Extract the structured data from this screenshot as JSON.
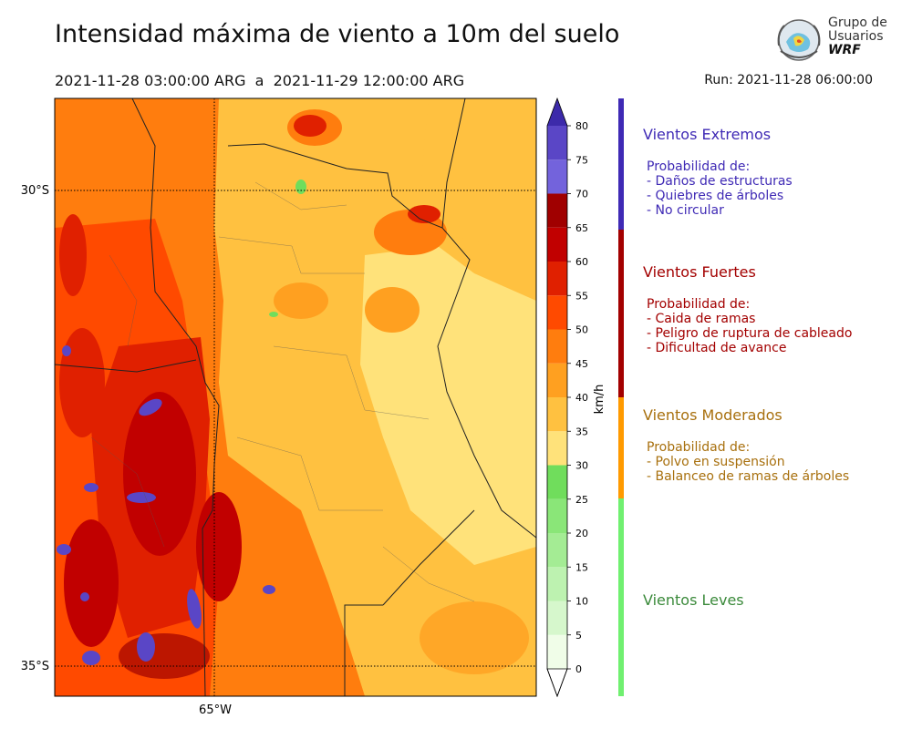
{
  "title": "Intensidad máxima de viento a 10m del suelo",
  "period": "2021-11-28 03:00:00 ARG  a  2021-11-29 12:00:00 ARG",
  "run": "Run: 2021-11-28 06:00:00",
  "logo": {
    "line1": "Grupo de",
    "line2": "Usuarios",
    "line3": "WRF"
  },
  "map": {
    "lat_labels": [
      "30°S",
      "35°S"
    ],
    "lon_labels": [
      "65°W"
    ]
  },
  "colorbar": {
    "unit_label": "km/h",
    "ticks": [
      "0",
      "5",
      "10",
      "15",
      "20",
      "25",
      "30",
      "35",
      "40",
      "45",
      "50",
      "55",
      "60",
      "65",
      "70",
      "75",
      "80"
    ],
    "colors": [
      "#f0fde8",
      "#d6f7cc",
      "#bdf2b0",
      "#a4ec94",
      "#8ae678",
      "#70dd5c",
      "#ffe27a",
      "#ffc140",
      "#ffa020",
      "#ff7d0e",
      "#ff4a00",
      "#e02000",
      "#c10000",
      "#a00000",
      "#7363dc",
      "#5a46c6",
      "#3c2aaa"
    ]
  },
  "categories": [
    {
      "title": "Vientos Extremos",
      "color": "#3f2ab5",
      "prob": "Probabilidad de:",
      "items": [
        "- Daños de estructuras",
        "- Quiebres de árboles",
        "- No circular"
      ]
    },
    {
      "title": "Vientos Fuertes",
      "color": "#a30000",
      "prob": "Probabilidad de:",
      "items": [
        "- Caida de ramas",
        "- Peligro de ruptura de cableado",
        "- Dificultad de avance"
      ]
    },
    {
      "title": "Vientos Moderados",
      "color": "#a8700e",
      "prob": "Probabilidad de:",
      "items": [
        "- Polvo en suspensión",
        "- Balanceo de ramas de árboles"
      ]
    },
    {
      "title": "Vientos Leves",
      "color": "#3b8a3b",
      "prob": "",
      "items": []
    }
  ]
}
